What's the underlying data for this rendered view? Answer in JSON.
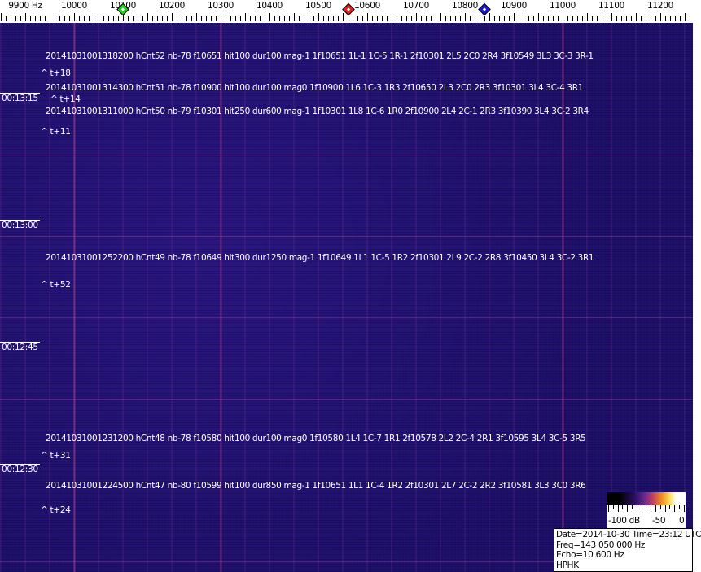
{
  "axis": {
    "unit_label": "9900 Hz",
    "labels": [
      "10000",
      "10100",
      "10200",
      "10300",
      "10400",
      "10500",
      "10600",
      "10700",
      "10800",
      "10900",
      "11000",
      "11100",
      "11200"
    ],
    "label_freqs": [
      9900,
      10000,
      10100,
      10200,
      10300,
      10400,
      10500,
      10600,
      10700,
      10800,
      10900,
      11000,
      11100,
      11200
    ]
  },
  "markers": [
    {
      "name": "green",
      "freq": 10100,
      "color": "#22cc22"
    },
    {
      "name": "red",
      "freq": 10562,
      "color": "#dd2222"
    },
    {
      "name": "blue",
      "freq": 10840,
      "color": "#1a1acc"
    }
  ],
  "colors": {
    "background": "#1d1068",
    "line": "#dc4682"
  },
  "times": [
    "00:13:15",
    "00:13:00",
    "00:12:45",
    "00:12:30"
  ],
  "events": [
    {
      "text": "20141031001318200 hCnt52 nb-78 f10651 hit100 dur100 mag-1 1f10651 1L-1 1C-5 1R-1 2f10301 2L5 2C0 2R4 3f10549 3L3 3C-3 3R-1",
      "offset": "^ t+18"
    },
    {
      "text": "20141031001314300 hCnt51 nb-78 f10900 hit100 dur100 mag0 1f10900 1L6 1C-3 1R3 2f10650 2L3 2C0 2R3 3f10301 3L4 3C-4 3R1",
      "offset": "^ t+14"
    },
    {
      "text": "20141031001311000 hCnt50 nb-79 f10301 hit250 dur600 mag-1 1f10301 1L8 1C-6 1R0 2f10900 2L4 2C-1 2R3 3f10390 3L4 3C-2 3R4",
      "offset": "^ t+11"
    },
    {
      "text": "20141031001252200 hCnt49 nb-78 f10649 hit300 dur1250 mag-1 1f10649 1L1 1C-5 1R2 2f10301 2L9 2C-2 2R8 3f10450 3L4 3C-2 3R1",
      "offset": "^ t+52"
    },
    {
      "text": "20141031001231200 hCnt48 nb-78 f10580 hit100 dur100 mag0 1f10580 1L4 1C-7 1R1 2f10578 2L2 2C-4 2R1 3f10595 3L4 3C-5 3R5",
      "offset": "^ t+31"
    },
    {
      "text": "20141031001224500 hCnt47 nb-80 f10599 hit100 dur850 mag-1 1f10651 1L1 1C-4 1R2 2f10301 2L7 2C-2 2R2 3f10581 3L3 3C0 3R6",
      "offset": "^ t+24"
    }
  ],
  "colorbar": {
    "labels": [
      "-100 dB",
      "-50",
      "0"
    ]
  },
  "info": {
    "date": "Date=2014-10-30 Time=23:12 UTC",
    "freq": "Freq=143 050 000 Hz",
    "echo": "Echo=10 600 Hz",
    "station": "HPHK"
  }
}
